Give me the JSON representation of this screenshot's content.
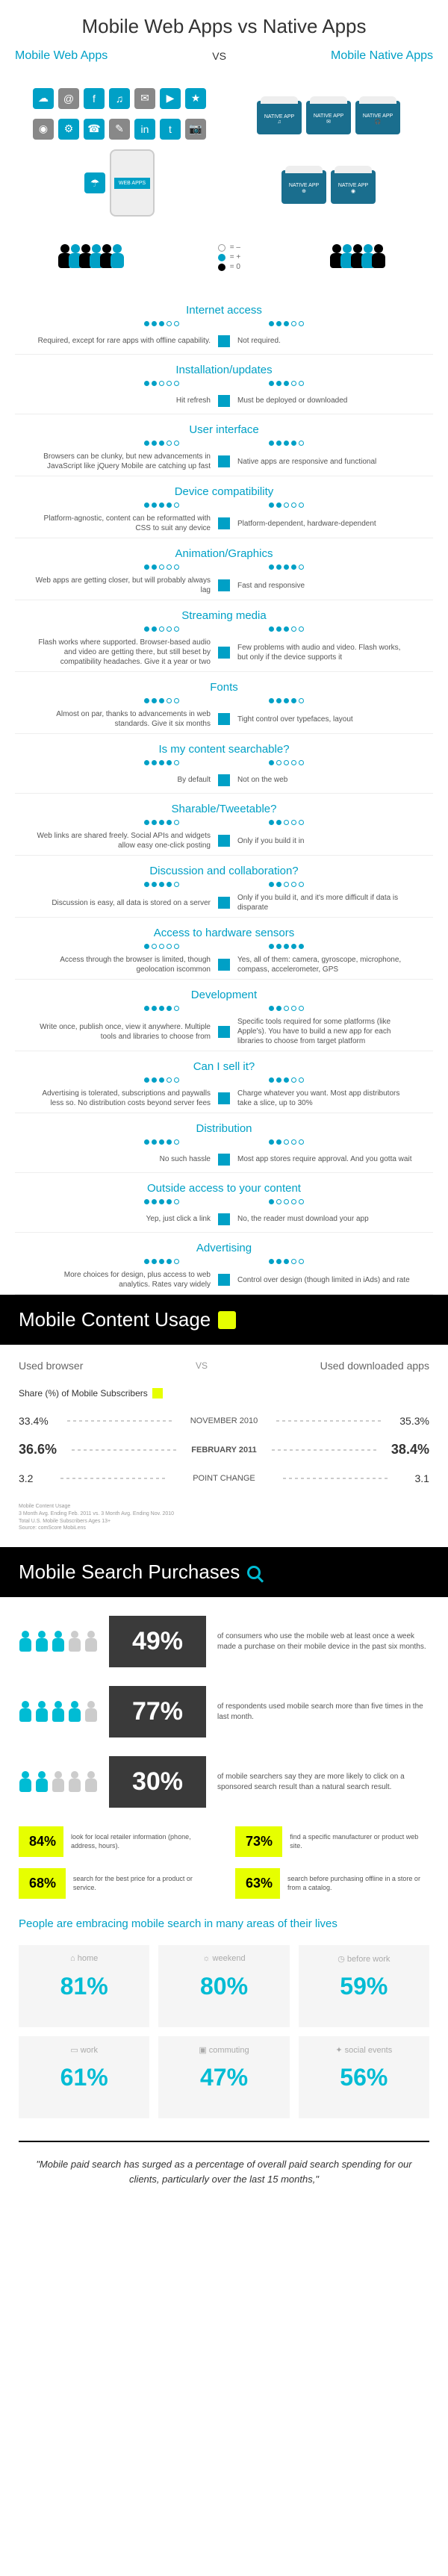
{
  "header": {
    "title": "Mobile Web Apps vs Native Apps",
    "left_label": "Mobile Web Apps",
    "right_label": "Mobile Native Apps",
    "vs": "VS",
    "store_label": "NATIVE APP"
  },
  "legend": {
    "minus": "= –",
    "plus": "= +",
    "zero": "= 0"
  },
  "categories": [
    {
      "name": "Internet access",
      "lrate": 3,
      "rrate": 3,
      "left": "Required, except for rare apps with offline capability.",
      "right": "Not required."
    },
    {
      "name": "Installation/updates",
      "lrate": 2,
      "rrate": 3,
      "left": "Hit refresh",
      "right": "Must be deployed or downloaded"
    },
    {
      "name": "User interface",
      "lrate": 3,
      "rrate": 4,
      "left": "Browsers can be clunky, but new advancements in JavaScript like jQuery Mobile are catching up fast",
      "right": "Native apps are responsive and functional"
    },
    {
      "name": "Device compatibility",
      "lrate": 4,
      "rrate": 2,
      "left": "Platform-agnostic, content can be reformatted with CSS to suit any device",
      "right": "Platform-dependent, hardware-dependent"
    },
    {
      "name": "Animation/Graphics",
      "lrate": 2,
      "rrate": 4,
      "left": "Web apps are getting closer, but will probably always lag",
      "right": "Fast and responsive"
    },
    {
      "name": "Streaming media",
      "lrate": 2,
      "rrate": 3,
      "left": "Flash works where supported. Browser-based audio and video are getting there, but still beset by compatibility headaches. Give it a year or two",
      "right": "Few problems with audio and video. Flash works, but only if the device supports it"
    },
    {
      "name": "Fonts",
      "lrate": 3,
      "rrate": 4,
      "left": "Almost on par, thanks to advancements in web standards. Give it six months",
      "right": "Tight control over typefaces, layout"
    },
    {
      "name": "Is my content searchable?",
      "lrate": 4,
      "rrate": 1,
      "left": "By default",
      "right": "Not on the web"
    },
    {
      "name": "Sharable/Tweetable?",
      "lrate": 4,
      "rrate": 2,
      "left": "Web links are shared freely. Social APIs and widgets allow easy one-click posting",
      "right": "Only if you build it in"
    },
    {
      "name": "Discussion and collaboration?",
      "lrate": 4,
      "rrate": 2,
      "left": "Discussion is easy, all data is stored on a server",
      "right": "Only if you build it, and it's more difficult if data is disparate"
    },
    {
      "name": "Access to hardware sensors",
      "lrate": 1,
      "rrate": 5,
      "left": "Access through the browser is limited, though geolocation iscommon",
      "right": "Yes, all of them: camera, gyroscope, microphone, compass, accelerometer, GPS"
    },
    {
      "name": "Development",
      "lrate": 4,
      "rrate": 2,
      "left": "Write once, publish once, view it anywhere. Multiple tools and libraries to choose from",
      "right": "Specific tools required for some platforms (like Apple's). You have to build a new app for each libraries to choose from target platform"
    },
    {
      "name": "Can I sell it?",
      "lrate": 3,
      "rrate": 3,
      "left": "Advertising is tolerated, subscriptions and paywalls less so. No distribution costs beyond server fees",
      "right": "Charge whatever you want. Most app distributors take a slice, up to 30%"
    },
    {
      "name": "Distribution",
      "lrate": 4,
      "rrate": 2,
      "left": "No such hassle",
      "right": "Most app stores require approval. And you gotta wait"
    },
    {
      "name": "Outside access to your content",
      "lrate": 4,
      "rrate": 1,
      "left": "Yep, just click a link",
      "right": "No, the reader must download your app"
    },
    {
      "name": "Advertising",
      "lrate": 4,
      "rrate": 3,
      "left": "More choices for design, plus access to web analytics. Rates vary widely",
      "right": "Control over design (though limited in iAds) and rate"
    }
  ],
  "usage": {
    "title": "Mobile Content Usage",
    "left_head": "Used browser",
    "right_head": "Used downloaded apps",
    "vs": "VS",
    "share_label": "Share (%) of Mobile Subscribers",
    "rows": [
      {
        "l": "33.4%",
        "m": "NOVEMBER 2010",
        "r": "35.3%",
        "hl": false
      },
      {
        "l": "36.6%",
        "m": "FEBRUARY 2011",
        "r": "38.4%",
        "hl": true
      },
      {
        "l": "3.2",
        "m": "POINT CHANGE",
        "r": "3.1",
        "hl": false
      }
    ],
    "fine": "Mobile Content Usage\n3 Month Avg. Ending Feb. 2011 vs. 3 Month Avg. Ending Nov. 2010\nTotal U.S. Mobile Subscribers Ages 13+\nSource: comScore MobiLens"
  },
  "search": {
    "title": "Mobile Search Purchases",
    "stats": [
      {
        "pct": "49%",
        "cyan": 3,
        "gray": 2,
        "txt": "of consumers who use the mobile web at least once a week made a purchase on their mobile device in the past six months."
      },
      {
        "pct": "77%",
        "cyan": 4,
        "gray": 1,
        "txt": "of respondents used mobile search more than five times in the last month."
      },
      {
        "pct": "30%",
        "cyan": 2,
        "gray": 3,
        "txt": "of mobile searchers say they are more likely to click on a sponsored search result than a natural search result."
      }
    ],
    "grid": [
      {
        "pct": "84%",
        "txt": "look for local retailer information (phone, address, hours)."
      },
      {
        "pct": "73%",
        "txt": "find a specific manufacturer or product web site."
      },
      {
        "pct": "68%",
        "txt": "search for the best price for a product or service."
      },
      {
        "pct": "63%",
        "txt": "search before purchasing offline in a store or from a catalog."
      }
    ],
    "areas_title": "People are embracing mobile search in many areas of their lives",
    "areas": [
      {
        "label": "home",
        "pct": "81%",
        "icon": "⌂"
      },
      {
        "label": "weekend",
        "pct": "80%",
        "icon": "☼"
      },
      {
        "label": "before work",
        "pct": "59%",
        "icon": "◷"
      },
      {
        "label": "work",
        "pct": "61%",
        "icon": "▭"
      },
      {
        "label": "commuting",
        "pct": "47%",
        "icon": "▣"
      },
      {
        "label": "social events",
        "pct": "56%",
        "icon": "✦"
      }
    ],
    "quote": "\"Mobile paid search has surged as a percentage of overall paid search spending for our clients, particularly over the last 15 months,\""
  },
  "colors": {
    "cyan": "#00a0c6",
    "lime": "#e6ff00",
    "dark": "#3a3a3a"
  }
}
